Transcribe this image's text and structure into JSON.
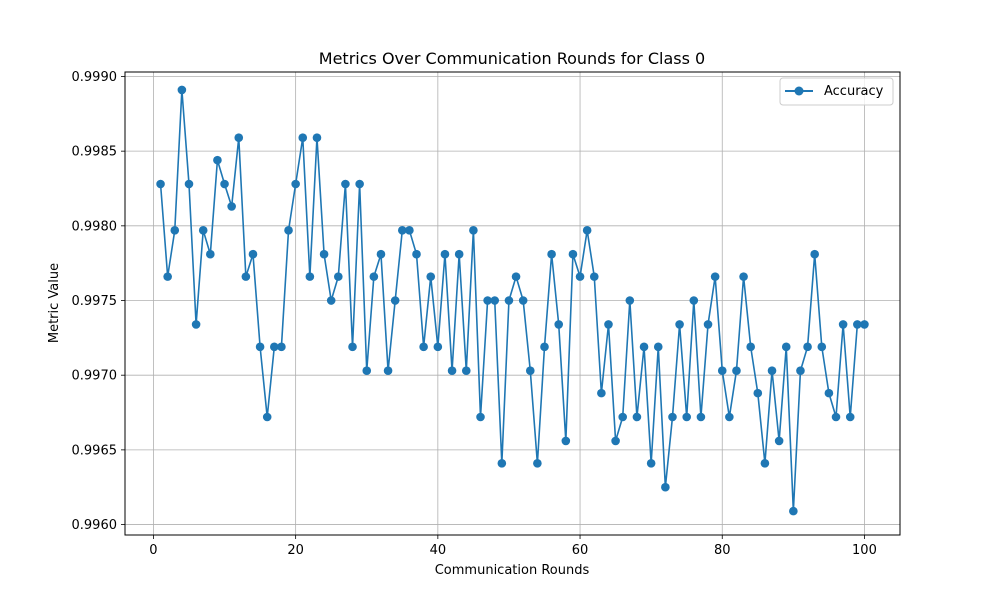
{
  "chart_data": {
    "type": "line",
    "title": "Metrics Over Communication Rounds for Class 0",
    "xlabel": "Communication Rounds",
    "ylabel": "Metric Value",
    "xlim": [
      -4,
      105
    ],
    "ylim": [
      0.99593,
      0.99903
    ],
    "xticks": [
      0,
      20,
      40,
      60,
      80,
      100
    ],
    "xtick_labels": [
      "0",
      "20",
      "40",
      "60",
      "80",
      "100"
    ],
    "yticks": [
      0.996,
      0.9965,
      0.997,
      0.9975,
      0.998,
      0.9985,
      0.999
    ],
    "ytick_labels": [
      "0.9960",
      "0.9965",
      "0.9970",
      "0.9975",
      "0.9980",
      "0.9985",
      "0.9990"
    ],
    "grid": true,
    "legend_position": "top-right",
    "series": [
      {
        "name": "Accuracy",
        "color": "#1f77b4",
        "marker": "circle",
        "x": [
          1,
          2,
          3,
          4,
          5,
          6,
          7,
          8,
          9,
          10,
          11,
          12,
          13,
          14,
          15,
          16,
          17,
          18,
          19,
          20,
          21,
          22,
          23,
          24,
          25,
          26,
          27,
          28,
          29,
          30,
          31,
          32,
          33,
          34,
          35,
          36,
          37,
          38,
          39,
          40,
          41,
          42,
          43,
          44,
          45,
          46,
          47,
          48,
          49,
          50,
          51,
          52,
          53,
          54,
          55,
          56,
          57,
          58,
          59,
          60,
          61,
          62,
          63,
          64,
          65,
          66,
          67,
          68,
          69,
          70,
          71,
          72,
          73,
          74,
          75,
          76,
          77,
          78,
          79,
          80,
          81,
          82,
          83,
          84,
          85,
          86,
          87,
          88,
          89,
          90,
          91,
          92,
          93,
          94,
          95,
          96,
          97,
          98,
          99,
          100
        ],
        "values": [
          0.99828,
          0.99766,
          0.99797,
          0.99891,
          0.99828,
          0.99734,
          0.99797,
          0.99781,
          0.99844,
          0.99828,
          0.99813,
          0.99859,
          0.99766,
          0.99781,
          0.99719,
          0.99672,
          0.99719,
          0.99719,
          0.99797,
          0.99828,
          0.99859,
          0.99766,
          0.99859,
          0.99781,
          0.9975,
          0.99766,
          0.99828,
          0.99719,
          0.99828,
          0.99703,
          0.99766,
          0.99781,
          0.99703,
          0.9975,
          0.99797,
          0.99797,
          0.99781,
          0.99719,
          0.99766,
          0.99719,
          0.99781,
          0.99703,
          0.99781,
          0.99703,
          0.99797,
          0.99672,
          0.9975,
          0.9975,
          0.99641,
          0.9975,
          0.99766,
          0.9975,
          0.99703,
          0.99641,
          0.99719,
          0.99781,
          0.99734,
          0.99656,
          0.99781,
          0.99766,
          0.99797,
          0.99766,
          0.99688,
          0.99734,
          0.99656,
          0.99672,
          0.9975,
          0.99672,
          0.99719,
          0.99641,
          0.99719,
          0.99625,
          0.99672,
          0.99734,
          0.99672,
          0.9975,
          0.99672,
          0.99734,
          0.99766,
          0.99703,
          0.99672,
          0.99703,
          0.99766,
          0.99719,
          0.99688,
          0.99641,
          0.99703,
          0.99656,
          0.99719,
          0.99609,
          0.99703,
          0.99719,
          0.99781,
          0.99719,
          0.99688,
          0.99672,
          0.99734,
          0.99672,
          0.99734,
          0.99734
        ]
      }
    ]
  }
}
